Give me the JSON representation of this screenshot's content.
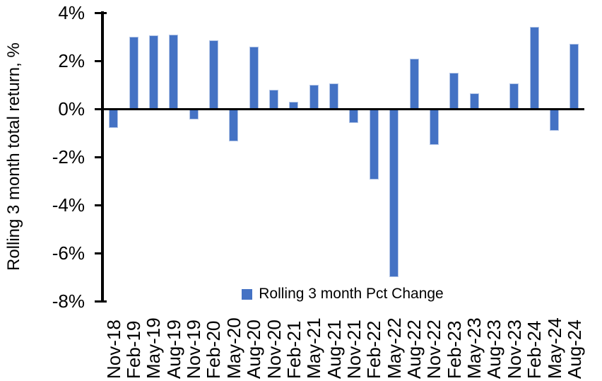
{
  "chart_data": {
    "type": "bar",
    "title": "",
    "y_axis_title": "Rolling 3 month total return, %",
    "categories": [
      "Nov-18",
      "Feb-19",
      "May-19",
      "Aug-19",
      "Nov-19",
      "Feb-20",
      "May-20",
      "Aug-20",
      "Nov-20",
      "Feb-21",
      "May-21",
      "Aug-21",
      "Nov-21",
      "Feb-22",
      "May-22",
      "Aug-22",
      "Nov-22",
      "Feb-23",
      "May-23",
      "Aug-23",
      "Nov-23",
      "Feb-24",
      "May-24",
      "Aug-24"
    ],
    "values": [
      -0.8,
      3.0,
      3.05,
      3.1,
      -0.45,
      2.85,
      -1.35,
      2.6,
      0.8,
      0.3,
      1.0,
      1.05,
      -0.6,
      -2.95,
      -7.0,
      2.1,
      -1.5,
      1.5,
      0.65,
      0.0,
      1.05,
      3.4,
      -0.9,
      2.7
    ],
    "value_unit": "%",
    "ylim": [
      -8,
      4
    ],
    "y_tick_step": 2,
    "y_tick_labels": [
      "4%",
      "2%",
      "0%",
      "-2%",
      "-4%",
      "-6%",
      "-8%"
    ],
    "grid": false,
    "legend": {
      "label": "Rolling 3 month Pct Change",
      "position": "inside-bottom-center"
    },
    "colors": {
      "bar_fill": "#4472C4",
      "bar_border": "#B4C6E7",
      "axis": "#000000",
      "text": "#000000",
      "background": "#FFFFFF"
    }
  }
}
